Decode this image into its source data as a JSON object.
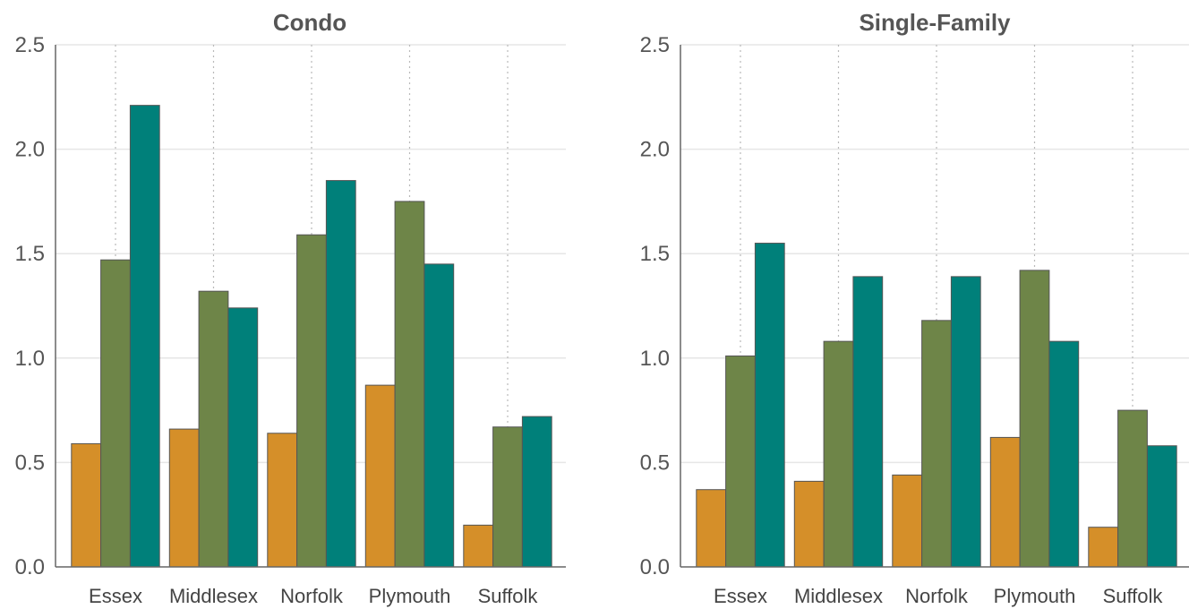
{
  "colors": {
    "series1": "#D58F29",
    "series2": "#6E8548",
    "series3": "#00807A",
    "bar_edge": "#555555",
    "grid": "#e6e6e6",
    "axis": "#666666"
  },
  "chart_data": [
    {
      "type": "bar",
      "title": "Condo",
      "categories": [
        "Essex",
        "Middlesex",
        "Norfolk",
        "Plymouth",
        "Suffolk"
      ],
      "ylim": [
        0,
        2.5
      ],
      "yticks": [
        "0.0",
        "0.5",
        "1.0",
        "1.5",
        "2.0",
        "2.5"
      ],
      "ytick_values": [
        0,
        0.5,
        1.0,
        1.5,
        2.0,
        2.5
      ],
      "grid": true,
      "series": [
        {
          "values": [
            0.59,
            0.66,
            0.64,
            0.87,
            0.2
          ]
        },
        {
          "values": [
            1.47,
            1.32,
            1.59,
            1.75,
            0.67
          ]
        },
        {
          "values": [
            2.21,
            1.24,
            1.85,
            1.45,
            0.72
          ]
        }
      ]
    },
    {
      "type": "bar",
      "title": "Single-Family",
      "categories": [
        "Essex",
        "Middlesex",
        "Norfolk",
        "Plymouth",
        "Suffolk"
      ],
      "ylim": [
        0,
        2.5
      ],
      "yticks": [
        "0.0",
        "0.5",
        "1.0",
        "1.5",
        "2.0",
        "2.5"
      ],
      "ytick_values": [
        0,
        0.5,
        1.0,
        1.5,
        2.0,
        2.5
      ],
      "grid": true,
      "series": [
        {
          "values": [
            0.37,
            0.41,
            0.44,
            0.62,
            0.19
          ]
        },
        {
          "values": [
            1.01,
            1.08,
            1.18,
            1.42,
            0.75
          ]
        },
        {
          "values": [
            1.55,
            1.39,
            1.39,
            1.08,
            0.58
          ]
        }
      ]
    }
  ]
}
